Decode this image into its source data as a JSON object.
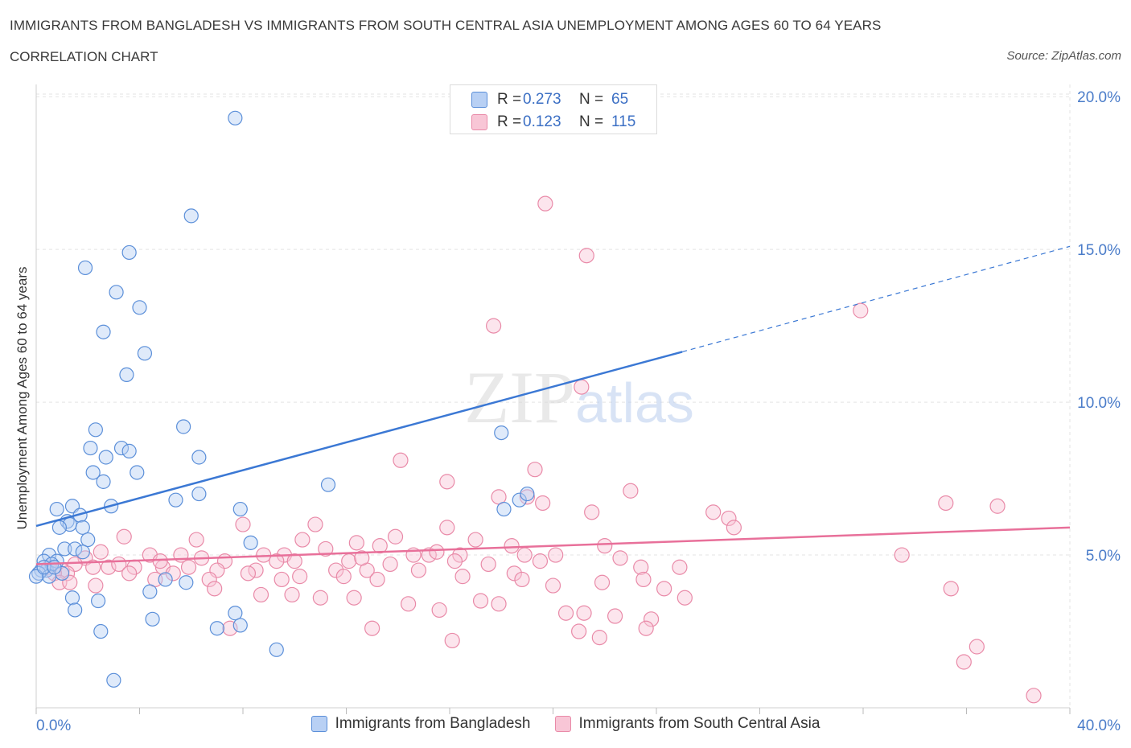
{
  "header": {
    "title": "IMMIGRANTS FROM BANGLADESH VS IMMIGRANTS FROM SOUTH CENTRAL ASIA UNEMPLOYMENT AMONG AGES 60 TO 64 YEARS",
    "subtitle": "CORRELATION CHART",
    "source": "Source: ZipAtlas.com"
  },
  "legend": {
    "rows": [
      {
        "r_label": "R =",
        "r_value": "0.273",
        "n_label": "N =",
        "n_value": "65"
      },
      {
        "r_label": "R =",
        "r_value": "0.123",
        "n_label": "N =",
        "n_value": "115"
      }
    ]
  },
  "colors": {
    "blue_fill": "#b8d0f4",
    "blue_stroke": "#5b8fd9",
    "blue_line": "#3b78d4",
    "pink_fill": "#f8c6d6",
    "pink_stroke": "#e98aa8",
    "pink_line": "#e8709a",
    "tick_label": "#4a7cc9",
    "grid": "#e3e3e3"
  },
  "chart_data": {
    "type": "scatter",
    "title": "IMMIGRANTS FROM BANGLADESH VS IMMIGRANTS FROM SOUTH CENTRAL ASIA UNEMPLOYMENT AMONG AGES 60 TO 64 YEARS",
    "xlabel": "",
    "ylabel": "Unemployment Among Ages 60 to 64 years",
    "xlim": [
      0,
      40
    ],
    "ylim": [
      0,
      20.4
    ],
    "x_tick_labels": [
      "0.0%",
      "40.0%"
    ],
    "y_ticks": [
      5,
      10,
      15,
      20
    ],
    "y_tick_labels": [
      "5.0%",
      "10.0%",
      "15.0%",
      "20.0%"
    ],
    "grid": true,
    "legend_position": "top-center",
    "watermark": "ZIPatlas",
    "series": [
      {
        "name": "Immigrants from Bangladesh",
        "color": "#5b8fd9",
        "trend": {
          "x0": 0,
          "y0": 5.95,
          "x1": 25,
          "y1": 11.65,
          "dashed_to_x": 40,
          "dashed_to_y": 15.1
        },
        "points": [
          [
            7.7,
            19.3
          ],
          [
            6.0,
            16.1
          ],
          [
            1.9,
            14.4
          ],
          [
            3.6,
            14.9
          ],
          [
            3.1,
            13.6
          ],
          [
            4.0,
            13.1
          ],
          [
            2.6,
            12.3
          ],
          [
            4.2,
            11.6
          ],
          [
            3.5,
            10.9
          ],
          [
            5.7,
            9.2
          ],
          [
            2.3,
            9.1
          ],
          [
            2.1,
            8.5
          ],
          [
            3.3,
            8.5
          ],
          [
            3.6,
            8.4
          ],
          [
            2.7,
            8.2
          ],
          [
            6.3,
            8.2
          ],
          [
            2.2,
            7.7
          ],
          [
            3.9,
            7.7
          ],
          [
            2.6,
            7.4
          ],
          [
            11.3,
            7.3
          ],
          [
            6.3,
            7.0
          ],
          [
            5.4,
            6.8
          ],
          [
            18.0,
            9.0
          ],
          [
            1.4,
            6.6
          ],
          [
            0.8,
            6.5
          ],
          [
            2.9,
            6.6
          ],
          [
            7.9,
            6.5
          ],
          [
            1.7,
            6.3
          ],
          [
            1.2,
            6.1
          ],
          [
            1.3,
            6.0
          ],
          [
            1.8,
            5.9
          ],
          [
            0.9,
            5.9
          ],
          [
            2.0,
            5.5
          ],
          [
            8.3,
            5.4
          ],
          [
            1.1,
            5.2
          ],
          [
            1.5,
            5.2
          ],
          [
            1.8,
            5.1
          ],
          [
            0.5,
            5.0
          ],
          [
            0.8,
            4.8
          ],
          [
            0.3,
            4.8
          ],
          [
            0.4,
            4.5
          ],
          [
            0.6,
            4.7
          ],
          [
            0.2,
            4.5
          ],
          [
            0.1,
            4.4
          ],
          [
            1.0,
            4.4
          ],
          [
            0.5,
            4.3
          ],
          [
            0.0,
            4.3
          ],
          [
            5.0,
            4.2
          ],
          [
            5.8,
            4.1
          ],
          [
            4.4,
            3.8
          ],
          [
            1.4,
            3.6
          ],
          [
            2.4,
            3.5
          ],
          [
            1.5,
            3.2
          ],
          [
            7.7,
            3.1
          ],
          [
            4.5,
            2.9
          ],
          [
            7.9,
            2.7
          ],
          [
            7.0,
            2.6
          ],
          [
            2.5,
            2.5
          ],
          [
            9.3,
            1.9
          ],
          [
            3.0,
            0.9
          ],
          [
            18.7,
            6.8
          ],
          [
            19.0,
            7.0
          ],
          [
            18.1,
            6.5
          ],
          [
            0.3,
            4.6
          ],
          [
            0.7,
            4.6
          ]
        ]
      },
      {
        "name": "Immigrants from South Central Asia",
        "color": "#e98aa8",
        "trend": {
          "x0": 0,
          "y0": 4.7,
          "x1": 40,
          "y1": 5.9
        },
        "points": [
          [
            19.7,
            16.5
          ],
          [
            21.3,
            14.8
          ],
          [
            31.9,
            13.0
          ],
          [
            17.7,
            12.5
          ],
          [
            21.1,
            10.5
          ],
          [
            14.1,
            8.1
          ],
          [
            19.3,
            7.8
          ],
          [
            15.9,
            7.4
          ],
          [
            23.0,
            7.1
          ],
          [
            19.0,
            6.9
          ],
          [
            17.9,
            6.9
          ],
          [
            19.6,
            6.7
          ],
          [
            35.2,
            6.7
          ],
          [
            37.2,
            6.6
          ],
          [
            26.2,
            6.4
          ],
          [
            21.5,
            6.4
          ],
          [
            26.8,
            6.2
          ],
          [
            8.0,
            6.0
          ],
          [
            10.8,
            6.0
          ],
          [
            15.9,
            5.9
          ],
          [
            27.0,
            5.9
          ],
          [
            3.4,
            5.6
          ],
          [
            13.9,
            5.6
          ],
          [
            17.0,
            5.5
          ],
          [
            10.3,
            5.5
          ],
          [
            6.2,
            5.5
          ],
          [
            12.4,
            5.4
          ],
          [
            13.3,
            5.3
          ],
          [
            22.0,
            5.3
          ],
          [
            2.5,
            5.1
          ],
          [
            11.2,
            5.2
          ],
          [
            4.4,
            5.0
          ],
          [
            5.6,
            5.0
          ],
          [
            8.8,
            5.0
          ],
          [
            9.6,
            5.0
          ],
          [
            14.6,
            5.0
          ],
          [
            15.2,
            5.0
          ],
          [
            16.4,
            5.0
          ],
          [
            18.9,
            5.0
          ],
          [
            20.1,
            5.0
          ],
          [
            22.6,
            4.9
          ],
          [
            33.5,
            5.0
          ],
          [
            1.9,
            4.9
          ],
          [
            6.4,
            4.9
          ],
          [
            7.3,
            4.8
          ],
          [
            9.3,
            4.8
          ],
          [
            10.0,
            4.8
          ],
          [
            12.1,
            4.8
          ],
          [
            13.7,
            4.7
          ],
          [
            16.2,
            4.8
          ],
          [
            17.5,
            4.7
          ],
          [
            23.4,
            4.6
          ],
          [
            1.5,
            4.7
          ],
          [
            2.2,
            4.6
          ],
          [
            2.8,
            4.6
          ],
          [
            3.2,
            4.7
          ],
          [
            3.8,
            4.6
          ],
          [
            4.9,
            4.6
          ],
          [
            5.9,
            4.6
          ],
          [
            7.0,
            4.5
          ],
          [
            8.5,
            4.5
          ],
          [
            11.6,
            4.5
          ],
          [
            12.8,
            4.5
          ],
          [
            14.8,
            4.5
          ],
          [
            18.5,
            4.4
          ],
          [
            24.9,
            4.6
          ],
          [
            0.5,
            4.6
          ],
          [
            1.0,
            4.5
          ],
          [
            1.2,
            4.4
          ],
          [
            0.7,
            4.4
          ],
          [
            3.6,
            4.4
          ],
          [
            4.6,
            4.2
          ],
          [
            6.7,
            4.2
          ],
          [
            9.5,
            4.2
          ],
          [
            10.2,
            4.3
          ],
          [
            11.9,
            4.3
          ],
          [
            13.2,
            4.2
          ],
          [
            16.5,
            4.3
          ],
          [
            18.8,
            4.2
          ],
          [
            20.0,
            4.0
          ],
          [
            21.9,
            4.1
          ],
          [
            23.5,
            4.2
          ],
          [
            24.3,
            3.9
          ],
          [
            25.1,
            3.6
          ],
          [
            0.9,
            4.1
          ],
          [
            1.3,
            4.1
          ],
          [
            2.3,
            4.0
          ],
          [
            6.9,
            3.9
          ],
          [
            8.7,
            3.7
          ],
          [
            9.9,
            3.7
          ],
          [
            11.0,
            3.6
          ],
          [
            12.3,
            3.6
          ],
          [
            14.4,
            3.4
          ],
          [
            15.6,
            3.2
          ],
          [
            17.9,
            3.4
          ],
          [
            17.2,
            3.5
          ],
          [
            20.5,
            3.1
          ],
          [
            21.2,
            3.1
          ],
          [
            22.4,
            3.0
          ],
          [
            23.8,
            2.9
          ],
          [
            35.4,
            3.9
          ],
          [
            7.5,
            2.6
          ],
          [
            13.0,
            2.6
          ],
          [
            21.0,
            2.5
          ],
          [
            23.6,
            2.6
          ],
          [
            16.1,
            2.2
          ],
          [
            21.8,
            2.3
          ],
          [
            36.4,
            2.0
          ],
          [
            35.9,
            1.5
          ],
          [
            38.6,
            0.4
          ],
          [
            4.8,
            4.8
          ],
          [
            5.3,
            4.4
          ],
          [
            8.2,
            4.4
          ],
          [
            12.6,
            4.9
          ],
          [
            15.5,
            5.1
          ],
          [
            18.4,
            5.3
          ],
          [
            19.5,
            4.8
          ]
        ]
      }
    ]
  },
  "bottom_legend": {
    "items": [
      "Immigrants from Bangladesh",
      "Immigrants from South Central Asia"
    ]
  }
}
